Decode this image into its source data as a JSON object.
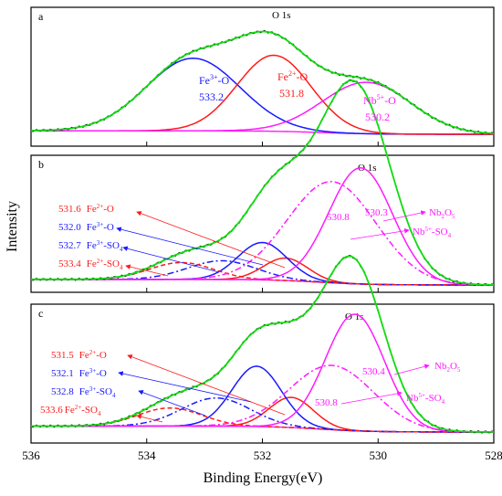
{
  "figure": {
    "xlabel": "Binding Energy(eV)",
    "ylabel": "Intensity",
    "x_tick_labels": [
      "536",
      "534",
      "532",
      "530",
      "528"
    ]
  },
  "chart_data": [
    {
      "type": "line",
      "panel": "a",
      "title": "O 1s",
      "xlim": [
        536,
        528
      ],
      "x_reversed": true,
      "grid": false,
      "components": [
        {
          "name": "Fe3+-O",
          "center": 533.2,
          "fwhm": 1.9,
          "height": 0.62,
          "color": "#1a1aff",
          "dash": "solid"
        },
        {
          "name": "Fe2+-O",
          "center": 531.8,
          "fwhm": 1.5,
          "height": 0.65,
          "color": "#ff1a1a",
          "dash": "solid"
        },
        {
          "name": "Nb5+-O",
          "center": 530.2,
          "fwhm": 1.8,
          "height": 0.44,
          "color": "#ff1aff",
          "dash": "solid"
        }
      ],
      "labels": [
        {
          "main": "Fe",
          "sup": "3+",
          "rest": "-O",
          "value": "533.2",
          "color": "#1a1aff"
        },
        {
          "main": "Fe",
          "sup": "2+",
          "rest": "-O",
          "value": "531.8",
          "color": "#ff1a1a"
        },
        {
          "main": "Nb",
          "sup": "5+",
          "rest": "-O",
          "value": "530.2",
          "color": "#ff1aff"
        }
      ]
    },
    {
      "type": "line",
      "panel": "b",
      "title": "O 1s",
      "xlim": [
        536,
        528
      ],
      "x_reversed": true,
      "grid": false,
      "components": [
        {
          "name": "Fe2+-O",
          "center": 531.6,
          "fwhm": 0.9,
          "height": 0.12,
          "color": "#ff1a1a",
          "dash": "solid"
        },
        {
          "name": "Fe3+-O",
          "center": 532.0,
          "fwhm": 1.0,
          "height": 0.2,
          "color": "#1a1aff",
          "dash": "solid"
        },
        {
          "name": "Fe3+-SO4",
          "center": 532.7,
          "fwhm": 1.4,
          "height": 0.1,
          "color": "#1a1aff",
          "dash": "dashdot"
        },
        {
          "name": "Fe2+-SO4",
          "center": 533.4,
          "fwhm": 1.3,
          "height": 0.09,
          "color": "#ff1a1a",
          "dash": "dash"
        },
        {
          "name": "Nb2O5",
          "center": 530.3,
          "fwhm": 1.3,
          "height": 0.62,
          "color": "#ff1aff",
          "dash": "solid"
        },
        {
          "name": "Nb5+-SO4",
          "center": 530.8,
          "fwhm": 1.8,
          "height": 0.54,
          "color": "#ff1aff",
          "dash": "dashdot"
        }
      ],
      "labels": [
        {
          "value": "531.6",
          "main": "Fe",
          "sup": "2+",
          "rest": "-O",
          "color": "#ff1a1a"
        },
        {
          "value": "532.0",
          "main": "Fe",
          "sup": "3+",
          "rest": "-O",
          "color": "#1a1aff"
        },
        {
          "value": "532.7",
          "main": "Fe",
          "sup": "3+",
          "rest": "-SO",
          "sub": "4",
          "color": "#1a1aff"
        },
        {
          "value": "533.4",
          "main": "Fe",
          "sup": "2+",
          "rest": "-SO",
          "sub": "4",
          "color": "#ff1a1a"
        },
        {
          "value": "530.8",
          "color": "#ff1aff"
        },
        {
          "value": "530.3",
          "color": "#ff1aff"
        },
        {
          "main": "Nb",
          "sub": "2",
          "rest": "O",
          "sub2": "5",
          "color": "#ff1aff"
        },
        {
          "main": "Nb",
          "sup": "5+",
          "rest": "-SO",
          "sub": "4",
          "color": "#ff1aff"
        }
      ]
    },
    {
      "type": "line",
      "panel": "c",
      "title": "O 1s",
      "xlim": [
        536,
        528
      ],
      "x_reversed": true,
      "grid": false,
      "components": [
        {
          "name": "Fe2+-O",
          "center": 531.5,
          "fwhm": 0.9,
          "height": 0.15,
          "color": "#ff1a1a",
          "dash": "solid"
        },
        {
          "name": "Fe3+-O",
          "center": 532.1,
          "fwhm": 1.0,
          "height": 0.3,
          "color": "#1a1aff",
          "dash": "solid"
        },
        {
          "name": "Fe3+-SO4",
          "center": 532.8,
          "fwhm": 1.4,
          "height": 0.14,
          "color": "#1a1aff",
          "dash": "dashdot"
        },
        {
          "name": "Fe2+-SO4",
          "center": 533.6,
          "fwhm": 1.3,
          "height": 0.09,
          "color": "#ff1a1a",
          "dash": "dash"
        },
        {
          "name": "Nb2O5",
          "center": 530.4,
          "fwhm": 1.2,
          "height": 0.58,
          "color": "#ff1aff",
          "dash": "solid"
        },
        {
          "name": "Nb5+-SO4",
          "center": 530.8,
          "fwhm": 1.7,
          "height": 0.32,
          "color": "#ff1aff",
          "dash": "dashdot"
        }
      ],
      "labels": [
        {
          "value": "531.5",
          "main": "Fe",
          "sup": "2+",
          "rest": "-O",
          "color": "#ff1a1a"
        },
        {
          "value": "532.1",
          "main": "Fe",
          "sup": "3+",
          "rest": "-O",
          "color": "#1a1aff"
        },
        {
          "value": "532.8",
          "main": "Fe",
          "sup": "3+",
          "rest": "-SO",
          "sub": "4",
          "color": "#1a1aff"
        },
        {
          "value": "533.6",
          "main": "Fe",
          "sup": "2+",
          "rest": "-SO",
          "sub": "4",
          "color": "#ff1a1a"
        },
        {
          "value": "530.4",
          "color": "#ff1aff"
        },
        {
          "value": "530.8",
          "color": "#ff1aff"
        },
        {
          "main": "Nb",
          "sub": "2",
          "rest": "O",
          "sub2": "5",
          "color": "#ff1aff"
        },
        {
          "main": "Nb",
          "sup": "5+",
          "rest": "-SO",
          "sub": "4",
          "color": "#ff1aff"
        }
      ]
    }
  ],
  "colors": {
    "envelope": "#11dd11",
    "raw": "#000000",
    "baseline": "#ff1aff"
  }
}
